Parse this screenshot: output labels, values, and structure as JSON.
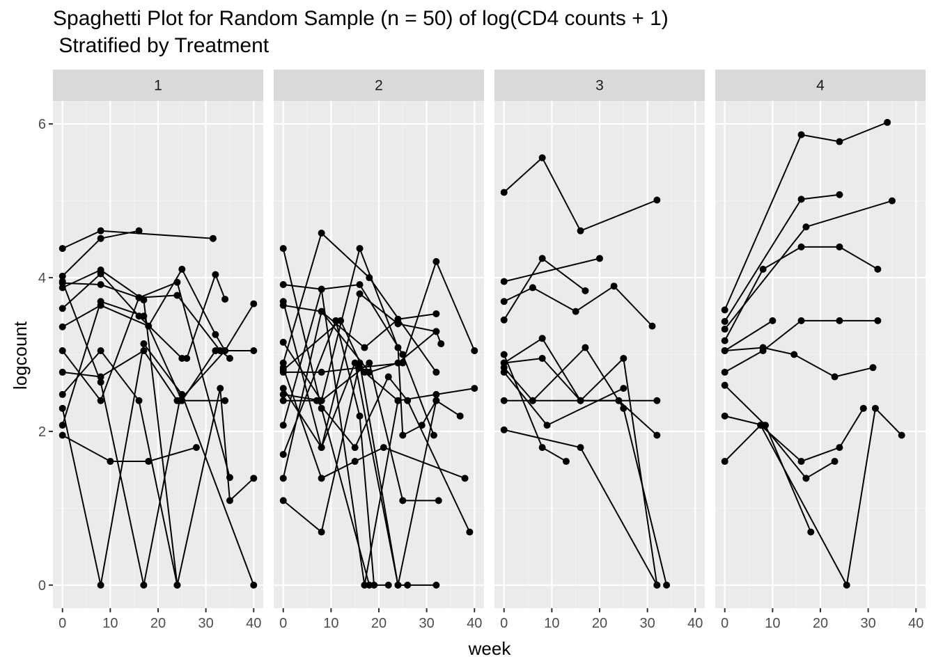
{
  "chart_data": {
    "type": "line",
    "title_lines": [
      "Spaghetti Plot for Random Sample (n = 50) of log(CD4 counts + 1)",
      " Stratified by Treatment"
    ],
    "xlabel": "week",
    "ylabel": "logcount",
    "xlim": [
      -2,
      42
    ],
    "ylim": [
      -0.3,
      6.3
    ],
    "x_ticks": [
      0,
      10,
      20,
      30,
      40
    ],
    "y_ticks": [
      0,
      2,
      4,
      6
    ],
    "grid": true,
    "facets": [
      {
        "label": "1",
        "series": [
          [
            [
              0,
              4.38
            ],
            [
              8,
              4.61
            ],
            [
              31.5,
              4.51
            ]
          ],
          [
            [
              0,
              4.02
            ],
            [
              8,
              4.51
            ],
            [
              16,
              4.61
            ]
          ],
          [
            [
              0,
              3.93
            ],
            [
              8,
              3.91
            ],
            [
              16,
              3.74
            ],
            [
              24,
              3.77
            ],
            [
              33,
              3.05
            ],
            [
              35,
              2.95
            ]
          ],
          [
            [
              0,
              3.87
            ],
            [
              8,
              4.1
            ],
            [
              17,
              3.71
            ],
            [
              24,
              0
            ]
          ],
          [
            [
              0,
              3.6
            ],
            [
              8,
              4.05
            ],
            [
              16,
              3.5
            ],
            [
              25,
              2.95
            ],
            [
              26,
              2.95
            ],
            [
              32,
              4.04
            ],
            [
              34,
              3.72
            ]
          ],
          [
            [
              0,
              3.36
            ],
            [
              8,
              3.64
            ],
            [
              18,
              3.37
            ],
            [
              25,
              4.11
            ],
            [
              32,
              3.26
            ],
            [
              34,
              3.05
            ]
          ],
          [
            [
              0,
              3.05
            ],
            [
              8,
              2.4
            ],
            [
              16,
              3.74
            ],
            [
              24,
              3.94
            ],
            [
              35,
              1.4
            ]
          ],
          [
            [
              0,
              2.77
            ],
            [
              8,
              2.71
            ],
            [
              17,
              3.05
            ],
            [
              24,
              2.4
            ],
            [
              34,
              2.4
            ]
          ],
          [
            [
              0,
              2.48
            ],
            [
              8,
              3.05
            ],
            [
              16,
              2.4
            ],
            [
              24,
              0
            ],
            [
              33,
              2.56
            ],
            [
              35,
              1.1
            ],
            [
              40,
              1.39
            ]
          ],
          [
            [
              0,
              2.3
            ],
            [
              8,
              0
            ],
            [
              17,
              3.14
            ],
            [
              25,
              2.48
            ],
            [
              40,
              0
            ]
          ],
          [
            [
              0,
              2.08
            ],
            [
              8,
              3.69
            ],
            [
              17,
              3.5
            ],
            [
              25,
              2.4
            ],
            [
              32,
              3.05
            ],
            [
              40,
              3.05
            ]
          ],
          [
            [
              0,
              1.95
            ],
            [
              10,
              1.61
            ],
            [
              18,
              1.61
            ],
            [
              28,
              1.79
            ]
          ],
          [
            [
              0,
              3.95
            ],
            [
              8,
              2.64
            ],
            [
              17,
              0
            ],
            [
              24.5,
              2.4
            ],
            [
              34,
              3.05
            ],
            [
              40,
              3.66
            ]
          ]
        ]
      },
      {
        "label": "2",
        "series": [
          [
            [
              0,
              4.38
            ],
            [
              8,
              2.3
            ],
            [
              18,
              0
            ],
            [
              22,
              0
            ]
          ],
          [
            [
              0,
              3.91
            ],
            [
              8,
              3.85
            ],
            [
              16,
              3.91
            ],
            [
              25,
              3.0
            ],
            [
              31.5,
              1.95
            ]
          ],
          [
            [
              0,
              3.69
            ],
            [
              8,
              1.79
            ],
            [
              15,
              2.89
            ],
            [
              24,
              0
            ],
            [
              26,
              0
            ],
            [
              32,
              0
            ]
          ],
          [
            [
              0,
              3.64
            ],
            [
              8,
              3.56
            ],
            [
              17,
              3.09
            ],
            [
              24,
              3.46
            ],
            [
              32,
              3.53
            ]
          ],
          [
            [
              0,
              3.16
            ],
            [
              8,
              2.4
            ],
            [
              18,
              2.89
            ],
            [
              25,
              1.1
            ],
            [
              32.5,
              1.1
            ]
          ],
          [
            [
              0,
              2.89
            ],
            [
              8,
              4.58
            ],
            [
              18,
              4.0
            ],
            [
              32,
              2.77
            ]
          ],
          [
            [
              0,
              2.8
            ],
            [
              12,
              3.44
            ],
            [
              17,
              2.77
            ],
            [
              24,
              2.4
            ]
          ],
          [
            [
              0,
              2.77
            ],
            [
              8,
              2.77
            ],
            [
              16,
              2.83
            ],
            [
              25,
              2.89
            ],
            [
              32,
              4.21
            ],
            [
              40,
              3.05
            ]
          ],
          [
            [
              0,
              2.56
            ],
            [
              8,
              1.79
            ],
            [
              16,
              3.79
            ],
            [
              24,
              3.4
            ],
            [
              32,
              3.3
            ],
            [
              33,
              3.14
            ]
          ],
          [
            [
              0,
              2.48
            ],
            [
              8,
              2.4
            ],
            [
              16,
              4.38
            ],
            [
              24,
              3.09
            ],
            [
              25,
              1.95
            ],
            [
              29,
              2.08
            ],
            [
              32,
              2.4
            ]
          ],
          [
            [
              0,
              2.08
            ],
            [
              8,
              3.85
            ],
            [
              17,
              0
            ],
            [
              24,
              2.4
            ],
            [
              32,
              2.48
            ],
            [
              40,
              2.56
            ]
          ],
          [
            [
              0,
              1.7
            ],
            [
              11,
              3.44
            ],
            [
              16,
              2.2
            ],
            [
              19,
              0
            ]
          ],
          [
            [
              0,
              1.39
            ],
            [
              8,
              3.56
            ],
            [
              18,
              2.77
            ],
            [
              24,
              2.89
            ],
            [
              32,
              3.3
            ]
          ],
          [
            [
              0,
              1.1
            ],
            [
              8,
              0.69
            ],
            [
              16,
              2.89
            ],
            [
              24,
              0
            ],
            [
              32,
              2.4
            ],
            [
              37,
              2.2
            ]
          ],
          [
            [
              0,
              2.83
            ],
            [
              8,
              1.39
            ],
            [
              15,
              1.61
            ],
            [
              21,
              1.79
            ],
            [
              38,
              1.39
            ]
          ],
          [
            [
              0,
              2.4
            ],
            [
              7,
              2.4
            ],
            [
              15,
              1.79
            ],
            [
              22,
              2.71
            ],
            [
              26,
              2.4
            ],
            [
              39,
              0.69
            ]
          ]
        ]
      },
      {
        "label": "3",
        "series": [
          [
            [
              0,
              5.11
            ],
            [
              8,
              5.56
            ],
            [
              16,
              4.61
            ],
            [
              32,
              5.01
            ]
          ],
          [
            [
              0,
              3.95
            ],
            [
              20,
              4.25
            ]
          ],
          [
            [
              0,
              3.69
            ],
            [
              6,
              3.87
            ],
            [
              15,
              3.56
            ],
            [
              23,
              3.89
            ],
            [
              31,
              3.37
            ]
          ],
          [
            [
              0,
              3.45
            ],
            [
              8,
              4.25
            ],
            [
              17,
              3.83
            ]
          ],
          [
            [
              0,
              3.0
            ],
            [
              8,
              1.79
            ],
            [
              13,
              1.61
            ]
          ],
          [
            [
              0,
              2.89
            ],
            [
              8,
              3.21
            ],
            [
              16,
              2.4
            ],
            [
              32,
              2.4
            ]
          ],
          [
            [
              0,
              2.83
            ],
            [
              6,
              2.4
            ],
            [
              16,
              2.4
            ],
            [
              24,
              2.4
            ],
            [
              32,
              1.95
            ]
          ],
          [
            [
              0,
              2.77
            ],
            [
              9,
              2.08
            ],
            [
              25,
              2.56
            ]
          ],
          [
            [
              0,
              2.4
            ],
            [
              6,
              2.4
            ],
            [
              17,
              3.09
            ],
            [
              25,
              2.3
            ],
            [
              34,
              0
            ]
          ],
          [
            [
              0,
              2.89
            ],
            [
              8,
              2.95
            ],
            [
              16,
              2.4
            ],
            [
              25,
              2.95
            ],
            [
              32,
              0
            ]
          ],
          [
            [
              0,
              2.02
            ],
            [
              16,
              1.79
            ],
            [
              32,
              0
            ]
          ]
        ]
      },
      {
        "label": "4",
        "series": [
          [
            [
              0,
              3.58
            ],
            [
              16,
              5.86
            ],
            [
              24,
              5.77
            ],
            [
              34,
              6.02
            ]
          ],
          [
            [
              0,
              3.43
            ],
            [
              16,
              5.02
            ],
            [
              24,
              5.08
            ]
          ],
          [
            [
              0,
              3.33
            ],
            [
              17,
              4.66
            ],
            [
              35,
              5.0
            ]
          ],
          [
            [
              0,
              3.18
            ],
            [
              8,
              4.11
            ],
            [
              16,
              4.4
            ],
            [
              24,
              4.4
            ],
            [
              32,
              4.11
            ]
          ],
          [
            [
              0,
              3.05
            ],
            [
              10,
              3.44
            ]
          ],
          [
            [
              0,
              3.05
            ],
            [
              8,
              3.09
            ],
            [
              14.5,
              3.0
            ],
            [
              23,
              2.71
            ],
            [
              31,
              2.83
            ]
          ],
          [
            [
              0,
              2.77
            ],
            [
              8,
              3.05
            ],
            [
              16,
              3.44
            ],
            [
              24,
              3.44
            ],
            [
              32,
              3.44
            ]
          ],
          [
            [
              0,
              2.2
            ],
            [
              8,
              2.08
            ],
            [
              17,
              1.39
            ],
            [
              23,
              1.61
            ]
          ],
          [
            [
              0,
              1.61
            ],
            [
              7.5,
              2.08
            ],
            [
              16,
              1.61
            ],
            [
              24,
              1.79
            ],
            [
              29,
              2.3
            ]
          ],
          [
            [
              0,
              2.6
            ],
            [
              8.5,
              2.08
            ],
            [
              18,
              0.69
            ]
          ],
          [
            [
              7.5,
              2.08
            ],
            [
              25.5,
              0
            ],
            [
              31.5,
              2.3
            ],
            [
              37,
              1.95
            ]
          ]
        ]
      }
    ]
  },
  "colors": {
    "panel_background": "#ebebeb",
    "grid_major": "#ffffff",
    "grid_minor": "#f2f2f2",
    "strip_background": "#d9d9d9",
    "line": "#000000",
    "point": "#000000",
    "axis_text": "#4d4d4d",
    "tick": "#333333"
  }
}
